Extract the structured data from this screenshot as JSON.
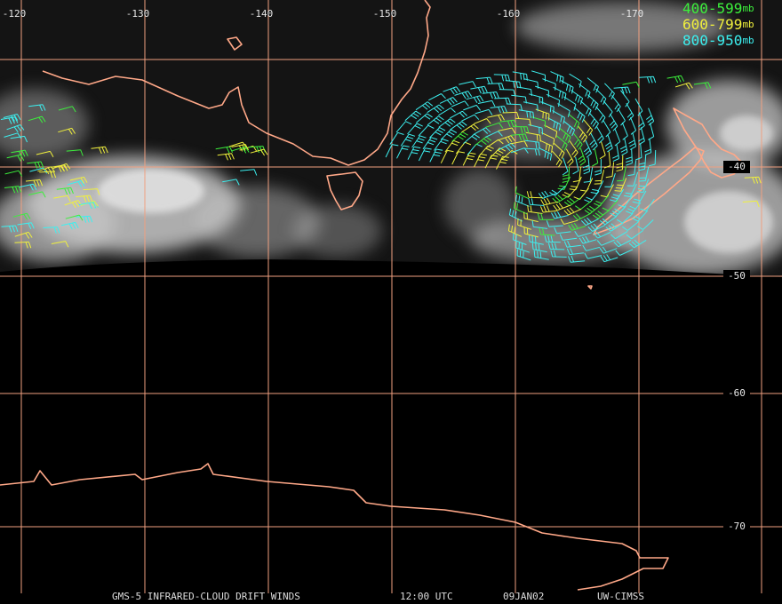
{
  "map": {
    "longitude_labels": [
      -120,
      -130,
      -140,
      -150,
      -160,
      -170
    ],
    "latitude_labels": [
      -40,
      -50,
      -60,
      -70
    ],
    "legend": [
      {
        "range": "400-599",
        "unit": "mb",
        "color": "#3cf03c"
      },
      {
        "range": "600-799",
        "unit": "mb",
        "color": "#f0f03c"
      },
      {
        "range": "800-950",
        "unit": "mb",
        "color": "#3cf0f0"
      }
    ],
    "footer": {
      "product": "GMS-5 INFRARED-CLOUD DRIFT WINDS",
      "time": "12:00 UTC",
      "date": "09JAN02",
      "source": "UW-CIMSS"
    }
  }
}
